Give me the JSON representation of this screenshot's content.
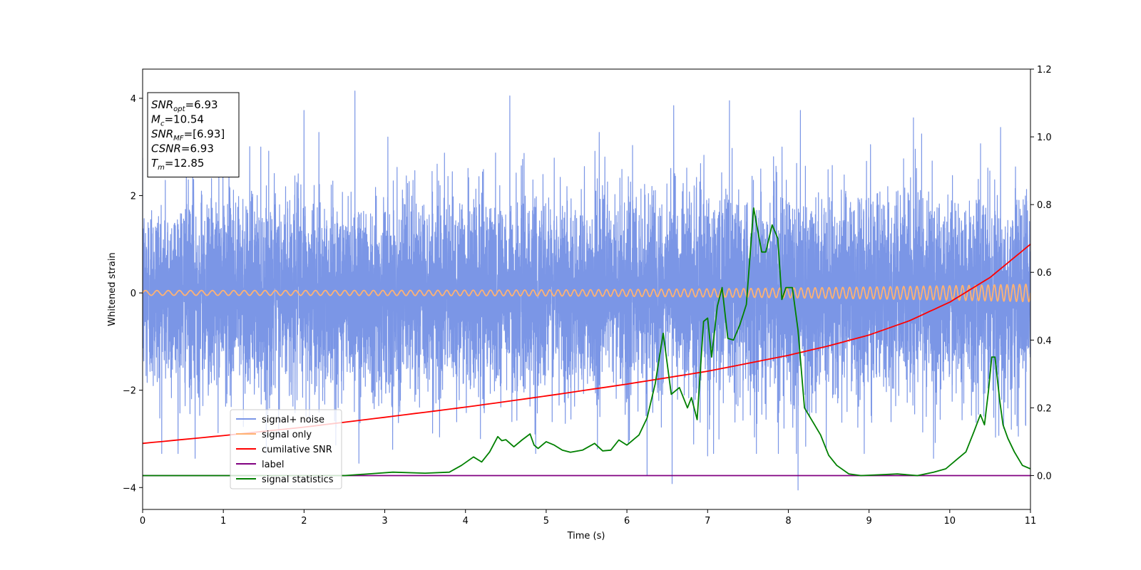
{
  "chart_data": {
    "type": "line",
    "xlabel": "Time (s)",
    "ylabel": "Whitened strain",
    "xlim": [
      0,
      11
    ],
    "ylim": [
      -4.45,
      4.6
    ],
    "ylim_right": [
      -0.1,
      1.2
    ],
    "x_ticks": [
      0,
      1,
      2,
      3,
      4,
      5,
      6,
      7,
      8,
      9,
      10,
      11
    ],
    "y_ticks": [
      -4,
      -2,
      0,
      2,
      4
    ],
    "y_ticks_right": [
      0.0,
      0.2,
      0.4,
      0.6,
      0.8,
      1.0,
      1.2
    ],
    "grid": false,
    "legend_position": "lower-left",
    "info_box": {
      "position": "top-left",
      "lines": [
        {
          "sym": "SNR",
          "sub": "opt",
          "val": "=6.93"
        },
        {
          "sym": "M",
          "sub": "c",
          "val": "=10.54"
        },
        {
          "sym": "SNR",
          "sub": "MF",
          "val": "=[6.93]"
        },
        {
          "sym": "CSNR",
          "sub": "",
          "val": "=6.93"
        },
        {
          "sym": "T",
          "sub": "m",
          "val": "=12.85"
        }
      ]
    },
    "series": [
      {
        "name": "signal+ noise",
        "axis": "left",
        "color": "#7b96e6",
        "kind": "gaussian-noise",
        "noise_sd": 1.0,
        "extremes": [
          [
            0.65,
            -3.4
          ],
          [
            1.07,
            3.55
          ],
          [
            2.0,
            3.75
          ],
          [
            2.63,
            4.15
          ],
          [
            2.68,
            -3.5
          ],
          [
            4.55,
            4.05
          ],
          [
            4.87,
            -3.3
          ],
          [
            6.25,
            -3.75
          ],
          [
            6.56,
            -3.92
          ],
          [
            6.58,
            3.85
          ],
          [
            7.0,
            -3.35
          ],
          [
            7.27,
            3.95
          ],
          [
            8.12,
            -4.05
          ],
          [
            8.15,
            3.75
          ],
          [
            9.55,
            3.6
          ],
          [
            9.8,
            -3.4
          ],
          [
            10.63,
            3.4
          ]
        ]
      },
      {
        "name": "signal only",
        "axis": "left",
        "color": "#ffb273",
        "kind": "chirp",
        "amp_start": 0.05,
        "amp_end": 0.18,
        "cycles": 110
      },
      {
        "name": "cumilative SNR",
        "axis": "right",
        "color": "#ff0000",
        "x": [
          0,
          1,
          2,
          3,
          4,
          5,
          6,
          7,
          8,
          8.5,
          9,
          9.5,
          10,
          10.5,
          11
        ],
        "y": [
          0.095,
          0.118,
          0.143,
          0.172,
          0.202,
          0.235,
          0.27,
          0.308,
          0.355,
          0.383,
          0.415,
          0.457,
          0.512,
          0.585,
          0.683
        ]
      },
      {
        "name": "label",
        "axis": "right",
        "color": "#800080",
        "x": [
          0,
          11
        ],
        "y": [
          0.0,
          0.0
        ]
      },
      {
        "name": "signal statistics",
        "axis": "right",
        "color": "#008000",
        "x": [
          0,
          2.5,
          2.8,
          3.1,
          3.5,
          3.8,
          3.95,
          4.1,
          4.2,
          4.3,
          4.4,
          4.45,
          4.5,
          4.6,
          4.7,
          4.8,
          4.85,
          4.9,
          5.0,
          5.1,
          5.2,
          5.3,
          5.45,
          5.6,
          5.7,
          5.8,
          5.9,
          6.0,
          6.15,
          6.25,
          6.35,
          6.45,
          6.55,
          6.65,
          6.75,
          6.8,
          6.87,
          6.95,
          7.0,
          7.05,
          7.12,
          7.18,
          7.25,
          7.32,
          7.4,
          7.48,
          7.57,
          7.67,
          7.72,
          7.8,
          7.87,
          7.92,
          7.97,
          8.05,
          8.12,
          8.2,
          8.3,
          8.4,
          8.5,
          8.6,
          8.75,
          8.9,
          9.1,
          9.35,
          9.6,
          9.8,
          9.95,
          10.1,
          10.2,
          10.3,
          10.38,
          10.43,
          10.48,
          10.52,
          10.56,
          10.62,
          10.66,
          10.72,
          10.8,
          10.9,
          11.0
        ],
        "y": [
          0.0,
          0.0,
          0.005,
          0.01,
          0.007,
          0.01,
          0.03,
          0.055,
          0.04,
          0.07,
          0.115,
          0.103,
          0.106,
          0.085,
          0.105,
          0.123,
          0.09,
          0.08,
          0.1,
          0.09,
          0.075,
          0.069,
          0.075,
          0.095,
          0.073,
          0.075,
          0.105,
          0.09,
          0.12,
          0.17,
          0.27,
          0.42,
          0.24,
          0.26,
          0.2,
          0.23,
          0.165,
          0.455,
          0.465,
          0.35,
          0.5,
          0.555,
          0.405,
          0.4,
          0.445,
          0.505,
          0.79,
          0.66,
          0.66,
          0.74,
          0.7,
          0.52,
          0.555,
          0.555,
          0.43,
          0.2,
          0.16,
          0.12,
          0.06,
          0.03,
          0.005,
          0.0,
          0.002,
          0.005,
          0.0,
          0.01,
          0.02,
          0.05,
          0.07,
          0.13,
          0.18,
          0.15,
          0.25,
          0.35,
          0.35,
          0.22,
          0.15,
          0.11,
          0.07,
          0.03,
          0.02
        ]
      }
    ]
  }
}
